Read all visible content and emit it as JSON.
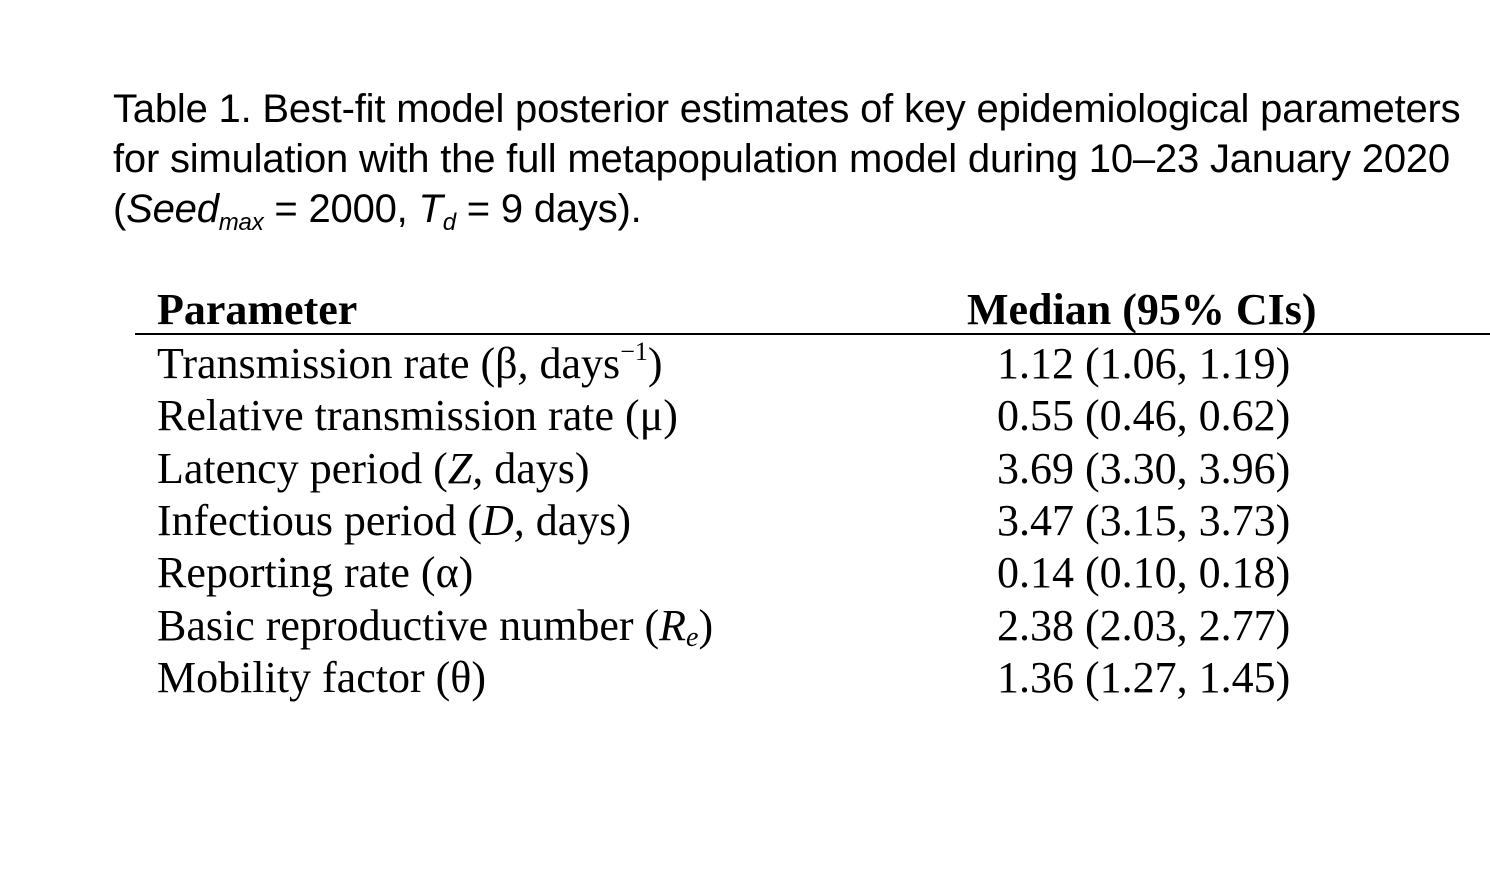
{
  "caption": {
    "prefix": "Table 1. Best-fit model posterior estimates of key epidemiological parameters for simulation with the full metapopulation model during 10–23 January 2020 (",
    "seed_symbol": "Seed",
    "seed_subscript": "max",
    "seed_value": " = 2000, ",
    "td_symbol": "T",
    "td_subscript": "d",
    "td_value": " = 9 days)."
  },
  "table": {
    "headers": {
      "parameter": "Parameter",
      "median": "Median (95% CIs)"
    },
    "rows": [
      {
        "param_pre": "Transmission rate (β",
        "param_italic": ",",
        "param_mid": " days",
        "param_sup": "−1",
        "param_sub": "",
        "param_post": ")",
        "median": "1.12 (1.06, 1.19)"
      },
      {
        "param_pre": "Relative transmission rate (μ)",
        "param_italic": "",
        "param_mid": "",
        "param_sup": "",
        "param_sub": "",
        "param_post": "",
        "median": "0.55 (0.46, 0.62)"
      },
      {
        "param_pre": "Latency period (",
        "param_italic": "Z,",
        "param_mid": " days)",
        "param_sup": "",
        "param_sub": "",
        "param_post": "",
        "median": "3.69 (3.30, 3.96)"
      },
      {
        "param_pre": "Infectious period (",
        "param_italic": "D,",
        "param_mid": " days)",
        "param_sup": "",
        "param_sub": "",
        "param_post": "",
        "median": "3.47 (3.15, 3.73)"
      },
      {
        "param_pre": "Reporting rate (α)",
        "param_italic": "",
        "param_mid": "",
        "param_sup": "",
        "param_sub": "",
        "param_post": "",
        "median": "0.14 (0.10, 0.18)"
      },
      {
        "param_pre": "Basic reproductive number (",
        "param_italic": "R",
        "param_mid": "",
        "param_sup": "",
        "param_sub": "e",
        "param_post": ")",
        "median": "2.38 (2.03, 2.77)"
      },
      {
        "param_pre": "Mobility factor (θ)",
        "param_italic": "",
        "param_mid": "",
        "param_sup": "",
        "param_sub": "",
        "param_post": "",
        "median": "1.36 (1.27, 1.45)"
      }
    ]
  }
}
